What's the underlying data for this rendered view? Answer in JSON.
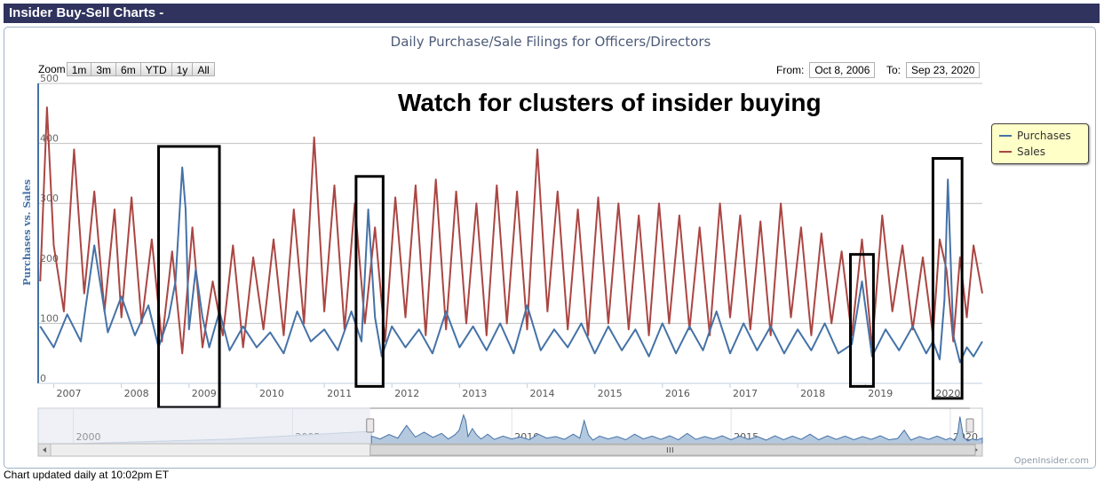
{
  "header": {
    "title": "Insider Buy-Sell Charts -"
  },
  "zoom": {
    "label": "Zoom",
    "buttons": [
      "1m",
      "3m",
      "6m",
      "YTD",
      "1y",
      "All"
    ]
  },
  "range": {
    "from_label": "From:",
    "from_value": "Oct 8, 2006",
    "to_label": "To:",
    "to_value": "Sep 23, 2020"
  },
  "annotation": {
    "text": "Watch for clusters of insider buying"
  },
  "legend": {
    "placement": "right",
    "items": [
      {
        "name": "Purchases",
        "color": "#4572a7"
      },
      {
        "name": "Sales",
        "color": "#aa4643"
      }
    ]
  },
  "navigator": {
    "labels": [
      "2000",
      "2005",
      "2010",
      "2015",
      "2020"
    ]
  },
  "credit": "OpenInsider.com",
  "footer": "Chart updated daily at 10:02pm ET",
  "chart_data": {
    "type": "line",
    "title": "Daily Purchase/Sale Filings for Officers/Directors",
    "ylabel": "Purchases vs. Sales",
    "ylim": [
      0,
      500
    ],
    "yticks": [
      "0",
      "100",
      "200",
      "300",
      "400",
      "500"
    ],
    "xlim": [
      2006.77,
      2020.73
    ],
    "xticks": [
      "2007",
      "2008",
      "2009",
      "2010",
      "2011",
      "2012",
      "2013",
      "2014",
      "2015",
      "2016",
      "2017",
      "2018",
      "2019",
      "2020"
    ],
    "grid": true,
    "series": [
      {
        "name": "Purchases",
        "color": "#4572a7",
        "x": [
          2006.8,
          2007.0,
          2007.2,
          2007.4,
          2007.6,
          2007.8,
          2008.0,
          2008.2,
          2008.4,
          2008.55,
          2008.7,
          2008.8,
          2008.9,
          2008.95,
          2009.0,
          2009.1,
          2009.2,
          2009.3,
          2009.45,
          2009.6,
          2009.8,
          2010.0,
          2010.2,
          2010.4,
          2010.6,
          2010.8,
          2011.0,
          2011.2,
          2011.4,
          2011.55,
          2011.65,
          2011.75,
          2011.85,
          2012.0,
          2012.2,
          2012.4,
          2012.6,
          2012.8,
          2013.0,
          2013.2,
          2013.4,
          2013.6,
          2013.8,
          2014.0,
          2014.2,
          2014.4,
          2014.6,
          2014.8,
          2015.0,
          2015.2,
          2015.4,
          2015.6,
          2015.8,
          2016.0,
          2016.2,
          2016.4,
          2016.6,
          2016.8,
          2017.0,
          2017.2,
          2017.4,
          2017.6,
          2017.8,
          2018.0,
          2018.2,
          2018.4,
          2018.6,
          2018.8,
          2018.95,
          2019.1,
          2019.3,
          2019.5,
          2019.7,
          2019.9,
          2020.0,
          2020.1,
          2020.17,
          2020.22,
          2020.3,
          2020.4,
          2020.5,
          2020.6,
          2020.73
        ],
        "values": [
          95,
          60,
          115,
          70,
          230,
          85,
          145,
          80,
          130,
          60,
          110,
          170,
          360,
          290,
          90,
          190,
          110,
          60,
          120,
          55,
          95,
          60,
          85,
          50,
          120,
          70,
          90,
          55,
          120,
          70,
          290,
          110,
          45,
          95,
          60,
          90,
          50,
          120,
          60,
          95,
          55,
          100,
          50,
          130,
          55,
          90,
          60,
          100,
          50,
          95,
          55,
          90,
          45,
          100,
          50,
          95,
          55,
          120,
          50,
          100,
          55,
          95,
          50,
          90,
          55,
          100,
          50,
          65,
          170,
          45,
          90,
          55,
          95,
          50,
          70,
          40,
          140,
          340,
          80,
          35,
          60,
          45,
          70
        ]
      },
      {
        "name": "Sales",
        "color": "#aa4643",
        "x": [
          2006.8,
          2006.9,
          2007.0,
          2007.15,
          2007.3,
          2007.45,
          2007.6,
          2007.75,
          2007.9,
          2008.0,
          2008.15,
          2008.3,
          2008.45,
          2008.6,
          2008.75,
          2008.9,
          2009.05,
          2009.2,
          2009.35,
          2009.5,
          2009.65,
          2009.8,
          2009.95,
          2010.1,
          2010.25,
          2010.4,
          2010.55,
          2010.7,
          2010.85,
          2011.0,
          2011.15,
          2011.3,
          2011.45,
          2011.6,
          2011.75,
          2011.9,
          2012.05,
          2012.2,
          2012.35,
          2012.5,
          2012.65,
          2012.8,
          2012.95,
          2013.1,
          2013.25,
          2013.4,
          2013.55,
          2013.7,
          2013.85,
          2014.0,
          2014.15,
          2014.3,
          2014.45,
          2014.6,
          2014.75,
          2014.9,
          2015.05,
          2015.2,
          2015.35,
          2015.5,
          2015.65,
          2015.8,
          2015.95,
          2016.1,
          2016.25,
          2016.4,
          2016.55,
          2016.7,
          2016.85,
          2017.0,
          2017.15,
          2017.3,
          2017.45,
          2017.6,
          2017.75,
          2017.9,
          2018.05,
          2018.2,
          2018.35,
          2018.5,
          2018.65,
          2018.8,
          2018.95,
          2019.1,
          2019.25,
          2019.4,
          2019.55,
          2019.7,
          2019.85,
          2020.0,
          2020.1,
          2020.2,
          2020.3,
          2020.4,
          2020.5,
          2020.6,
          2020.73
        ],
        "values": [
          170,
          460,
          230,
          120,
          390,
          150,
          320,
          120,
          290,
          110,
          310,
          100,
          240,
          70,
          220,
          50,
          260,
          60,
          170,
          80,
          230,
          60,
          210,
          90,
          240,
          80,
          290,
          100,
          410,
          120,
          330,
          90,
          300,
          100,
          260,
          70,
          310,
          110,
          330,
          80,
          340,
          90,
          320,
          100,
          300,
          80,
          330,
          100,
          320,
          90,
          390,
          120,
          320,
          90,
          290,
          80,
          310,
          100,
          300,
          90,
          280,
          80,
          300,
          100,
          280,
          90,
          260,
          80,
          300,
          110,
          280,
          90,
          270,
          80,
          300,
          110,
          260,
          80,
          250,
          100,
          220,
          80,
          240,
          60,
          280,
          120,
          230,
          90,
          210,
          80,
          240,
          190,
          70,
          210,
          110,
          230,
          150
        ]
      }
    ]
  }
}
